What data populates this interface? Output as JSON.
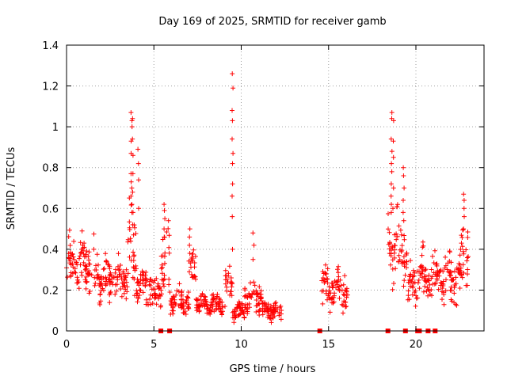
{
  "chart_data": {
    "type": "scatter",
    "title": "Day 169 of 2025, SRMTID for receiver gamb",
    "xlabel": "GPS time / hours",
    "ylabel": "SRMTID / TECUs",
    "xlim": [
      0,
      23.9
    ],
    "ylim": [
      0,
      1.4
    ],
    "x_ticks": [
      0,
      5,
      10,
      15,
      20
    ],
    "y_ticks": [
      0,
      0.2,
      0.4,
      0.6,
      0.8,
      1,
      1.2,
      1.4
    ],
    "x_tick_labels": [
      "0",
      "5",
      "10",
      "15",
      "20"
    ],
    "y_tick_labels": [
      "0",
      "0.2",
      "0.4",
      "0.6",
      "0.8",
      "1",
      "1.2",
      "1.4"
    ],
    "marker": "+",
    "grid": true,
    "color": "#ff0000",
    "segments": [
      {
        "x0": 0.0,
        "x1": 1.6,
        "base": 0.33,
        "spread": 0.14
      },
      {
        "x0": 1.6,
        "x1": 3.0,
        "base": 0.26,
        "spread": 0.12
      },
      {
        "x0": 3.0,
        "x1": 3.5,
        "base": 0.26,
        "spread": 0.1
      },
      {
        "x0": 3.5,
        "x1": 4.0,
        "base": 0.4,
        "spread": 0.25
      },
      {
        "x0": 4.0,
        "x1": 4.9,
        "base": 0.22,
        "spread": 0.1
      },
      {
        "x0": 4.9,
        "x1": 5.4,
        "base": 0.18,
        "spread": 0.08
      },
      {
        "x0": 5.4,
        "x1": 5.9,
        "base": 0.35,
        "spread": 0.18
      },
      {
        "x0": 5.9,
        "x1": 7.0,
        "base": 0.15,
        "spread": 0.07
      },
      {
        "x0": 7.0,
        "x1": 7.4,
        "base": 0.3,
        "spread": 0.12
      },
      {
        "x0": 7.4,
        "x1": 9.1,
        "base": 0.13,
        "spread": 0.06
      },
      {
        "x0": 9.1,
        "x1": 9.5,
        "base": 0.22,
        "spread": 0.1
      },
      {
        "x0": 9.5,
        "x1": 10.2,
        "base": 0.09,
        "spread": 0.05
      },
      {
        "x0": 10.2,
        "x1": 11.2,
        "base": 0.17,
        "spread": 0.08
      },
      {
        "x0": 11.2,
        "x1": 12.3,
        "base": 0.1,
        "spread": 0.05
      },
      {
        "x0": 14.6,
        "x1": 15.1,
        "base": 0.2,
        "spread": 0.12
      },
      {
        "x0": 15.1,
        "x1": 16.1,
        "base": 0.21,
        "spread": 0.1
      },
      {
        "x0": 18.4,
        "x1": 19.5,
        "base": 0.42,
        "spread": 0.2
      },
      {
        "x0": 19.5,
        "x1": 20.0,
        "base": 0.23,
        "spread": 0.12
      },
      {
        "x0": 20.0,
        "x1": 20.8,
        "base": 0.26,
        "spread": 0.14
      },
      {
        "x0": 20.8,
        "x1": 21.6,
        "base": 0.25,
        "spread": 0.12
      },
      {
        "x0": 21.6,
        "x1": 22.6,
        "base": 0.25,
        "spread": 0.14
      },
      {
        "x0": 22.6,
        "x1": 23.0,
        "base": 0.4,
        "spread": 0.2
      }
    ],
    "spikes": [
      {
        "x": 3.72,
        "values": [
          1.07,
          1.03,
          1.0,
          0.93,
          0.87,
          0.77,
          0.73,
          0.7,
          0.66,
          0.62,
          0.58
        ]
      },
      {
        "x": 3.8,
        "values": [
          1.04,
          0.94,
          0.86,
          0.77,
          0.68,
          0.58,
          0.52
        ]
      },
      {
        "x": 4.1,
        "values": [
          0.89,
          0.82,
          0.74,
          0.6
        ]
      },
      {
        "x": 5.6,
        "values": [
          0.62,
          0.59,
          0.55,
          0.5,
          0.46
        ]
      },
      {
        "x": 7.05,
        "values": [
          0.5,
          0.46,
          0.42,
          0.38
        ]
      },
      {
        "x": 9.5,
        "values": [
          1.26,
          1.19,
          1.08,
          1.03,
          0.94,
          0.87,
          0.82,
          0.72,
          0.66,
          0.56,
          0.4
        ]
      },
      {
        "x": 10.7,
        "values": [
          0.48,
          0.42,
          0.35
        ]
      },
      {
        "x": 18.6,
        "values": [
          1.07,
          1.04,
          0.94,
          0.88,
          0.82,
          0.78,
          0.72,
          0.66,
          0.62,
          0.58
        ]
      },
      {
        "x": 18.7,
        "values": [
          1.03,
          0.93,
          0.85,
          0.7,
          0.6
        ]
      },
      {
        "x": 19.3,
        "values": [
          0.8,
          0.76,
          0.7,
          0.64,
          0.58
        ]
      },
      {
        "x": 22.75,
        "values": [
          0.67,
          0.64,
          0.6,
          0.56,
          0.5
        ]
      }
    ],
    "zero_values": [
      5.4,
      5.9,
      14.5,
      18.4,
      19.4,
      20.1,
      20.2,
      20.7,
      21.1
    ]
  }
}
